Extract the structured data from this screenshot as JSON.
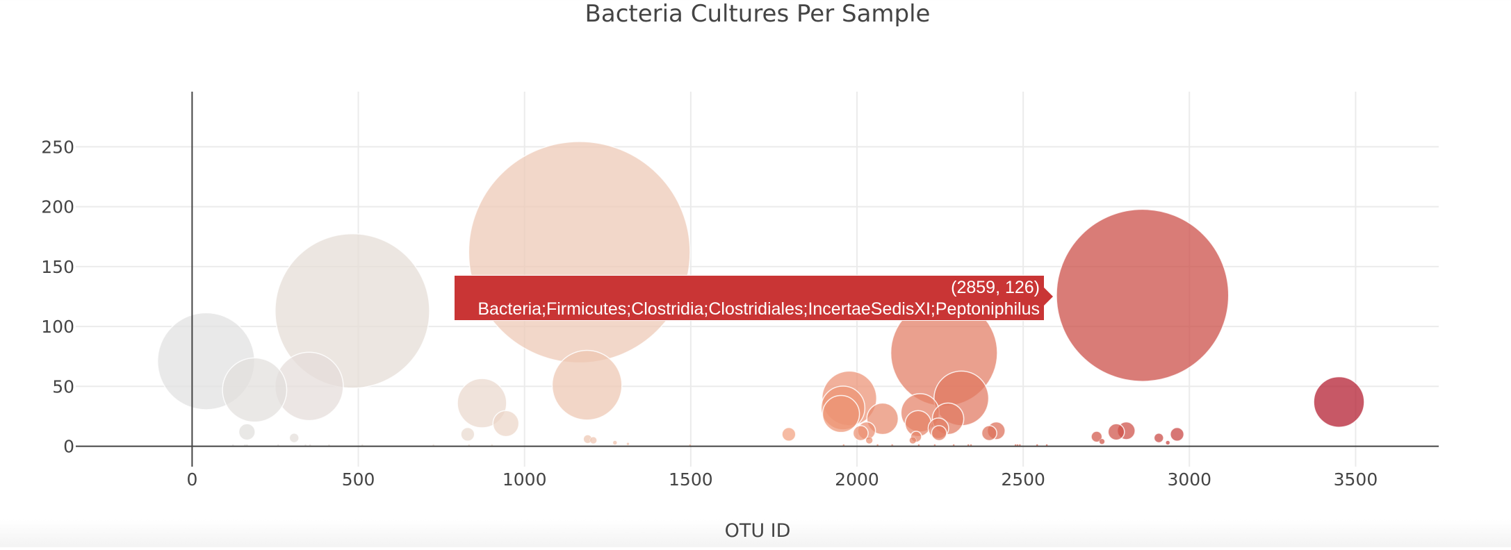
{
  "title": "Bacteria Cultures Per Sample",
  "x_axis": {
    "label": "OTU ID",
    "ticks": [
      "0",
      "500",
      "1000",
      "1500",
      "2000",
      "2500",
      "3000",
      "3500"
    ]
  },
  "y_axis": {
    "ticks": [
      "0",
      "50",
      "100",
      "150",
      "200",
      "250"
    ]
  },
  "tooltip": {
    "coords": "(2859, 126)",
    "label": "Bacteria;Firmicutes;Clostridia;Clostridiales;IncertaeSedisXI;Peptoniphilus",
    "color": "#c93535"
  },
  "chart_data": {
    "type": "scatter",
    "subtype": "bubble",
    "title": "Bacteria Cultures Per Sample",
    "xlabel": "OTU ID",
    "ylabel": "",
    "xlim": [
      -350,
      3750
    ],
    "ylim": [
      -17,
      296
    ],
    "x_ticks": [
      0,
      500,
      1000,
      1500,
      2000,
      2500,
      3000,
      3500
    ],
    "y_ticks": [
      0,
      50,
      100,
      150,
      200,
      250
    ],
    "grid": true,
    "legend": false,
    "marker_size_encodes": "sample_value",
    "marker_color_encodes": "otu_id",
    "colorscale": [
      "#e0e0e0",
      "#ead8cc",
      "#f4a582",
      "#d6604d",
      "#b2182b"
    ],
    "hover": {
      "x": 2859,
      "y": 126,
      "text": "Bacteria;Firmicutes;Clostridia;Clostridiales;IncertaeSedisXI;Peptoniphilus"
    },
    "points": [
      {
        "x": 1165,
        "y": 162
      },
      {
        "x": 2859,
        "y": 126
      },
      {
        "x": 482,
        "y": 113
      },
      {
        "x": 2262,
        "y": 78
      },
      {
        "x": 42,
        "y": 71
      },
      {
        "x": 1188,
        "y": 51
      },
      {
        "x": 352,
        "y": 50
      },
      {
        "x": 188,
        "y": 47
      },
      {
        "x": 1977,
        "y": 40
      },
      {
        "x": 2314,
        "y": 40
      },
      {
        "x": 3450,
        "y": 37
      },
      {
        "x": 872,
        "y": 36
      },
      {
        "x": 1958,
        "y": 32
      },
      {
        "x": 2190,
        "y": 28
      },
      {
        "x": 1952,
        "y": 27
      },
      {
        "x": 2077,
        "y": 23
      },
      {
        "x": 2274,
        "y": 23
      },
      {
        "x": 944,
        "y": 19
      },
      {
        "x": 2184,
        "y": 19
      },
      {
        "x": 2245,
        "y": 15
      },
      {
        "x": 2029,
        "y": 13
      },
      {
        "x": 2419,
        "y": 13
      },
      {
        "x": 2810,
        "y": 13
      },
      {
        "x": 165,
        "y": 12
      },
      {
        "x": 2780,
        "y": 12
      },
      {
        "x": 2011,
        "y": 11
      },
      {
        "x": 2247,
        "y": 11
      },
      {
        "x": 2398,
        "y": 11
      },
      {
        "x": 829,
        "y": 10
      },
      {
        "x": 1795,
        "y": 10
      },
      {
        "x": 2963,
        "y": 10
      },
      {
        "x": 2178,
        "y": 8
      },
      {
        "x": 2721,
        "y": 8
      },
      {
        "x": 307,
        "y": 7
      },
      {
        "x": 2908,
        "y": 7
      },
      {
        "x": 1190,
        "y": 6
      },
      {
        "x": 1207,
        "y": 5
      },
      {
        "x": 2037,
        "y": 5
      },
      {
        "x": 2168,
        "y": 5
      },
      {
        "x": 2737,
        "y": 4
      },
      {
        "x": 1272,
        "y": 3
      },
      {
        "x": 2935,
        "y": 3
      },
      {
        "x": 1311,
        "y": 2
      },
      {
        "x": 123,
        "y": 1
      },
      {
        "x": 159,
        "y": 1
      },
      {
        "x": 165,
        "y": 1
      },
      {
        "x": 259,
        "y": 1
      },
      {
        "x": 341,
        "y": 1
      },
      {
        "x": 355,
        "y": 1
      },
      {
        "x": 412,
        "y": 1
      },
      {
        "x": 512,
        "y": 1
      },
      {
        "x": 726,
        "y": 1
      },
      {
        "x": 833,
        "y": 1
      },
      {
        "x": 902,
        "y": 1
      },
      {
        "x": 1498,
        "y": 1
      },
      {
        "x": 1960,
        "y": 1
      },
      {
        "x": 2062,
        "y": 1
      },
      {
        "x": 2106,
        "y": 1
      },
      {
        "x": 2186,
        "y": 1
      },
      {
        "x": 2234,
        "y": 1
      },
      {
        "x": 2291,
        "y": 1
      },
      {
        "x": 2335,
        "y": 1
      },
      {
        "x": 2343,
        "y": 1
      },
      {
        "x": 2477,
        "y": 1
      },
      {
        "x": 2483,
        "y": 1
      },
      {
        "x": 2490,
        "y": 1
      },
      {
        "x": 2542,
        "y": 1
      },
      {
        "x": 2571,
        "y": 1
      }
    ]
  }
}
